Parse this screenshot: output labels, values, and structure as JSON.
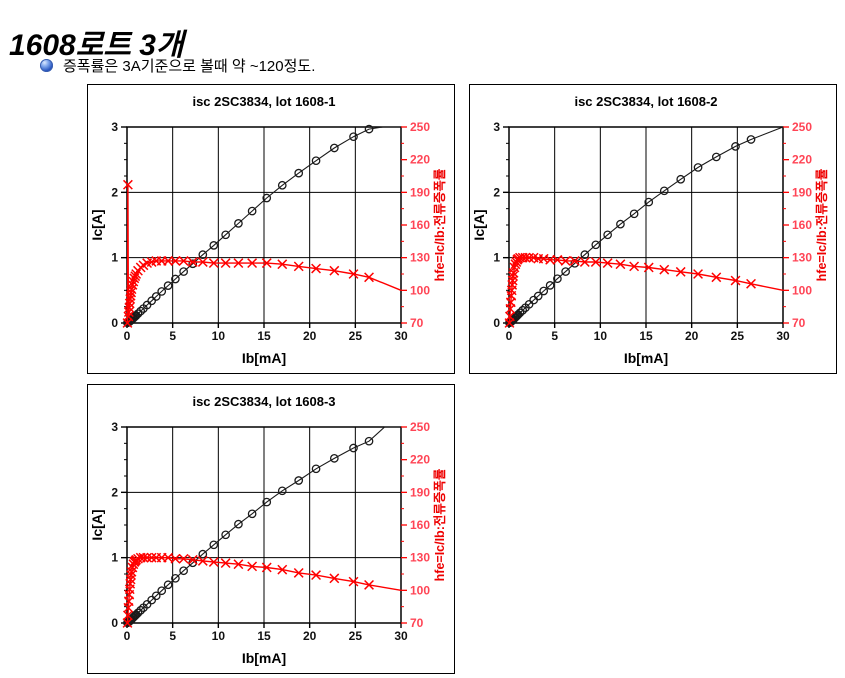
{
  "header": {
    "title": "1608로트 3개"
  },
  "bullet": {
    "icon": "sphere-bullet-icon",
    "text": "증폭률은 3A기준으로 볼때 약 ~120정도."
  },
  "colors": {
    "series_black": "#1a1a1a",
    "series_red": "#ff0000",
    "right_tick_label": "#ff4455",
    "right_axis_label": "#ee0000",
    "grid": "#000000",
    "axis": "#000000"
  },
  "chart_data": [
    {
      "type": "line",
      "title": "isc 2SC3834, lot 1608-1",
      "xlabel": "Ib[mA]",
      "ylabel_left": "Ic[A]",
      "ylabel_right": "hfe=Ic/Ib:전류증폭률",
      "xlim": [
        0,
        30
      ],
      "xticks": [
        0,
        5,
        10,
        15,
        20,
        25,
        30
      ],
      "ylim_left": [
        0,
        3
      ],
      "yticks_left": [
        0,
        1,
        2,
        3
      ],
      "yticks_left_minor_step": 0.25,
      "ylim_right": [
        70,
        250
      ],
      "yticks_right": [
        70,
        100,
        130,
        160,
        190,
        220,
        250
      ],
      "yticks_right_minor_step": 15,
      "grid": true,
      "x": [
        0.05,
        0.1,
        0.15,
        0.2,
        0.25,
        0.3,
        0.35,
        0.4,
        0.45,
        0.5,
        0.6,
        0.7,
        0.8,
        0.9,
        1.0,
        1.2,
        1.5,
        1.8,
        2.2,
        2.7,
        3.2,
        3.8,
        4.5,
        5.3,
        6.2,
        7.2,
        8.3,
        9.5,
        10.8,
        12.2,
        13.7,
        15.3,
        17.0,
        18.8,
        20.7,
        22.7,
        24.8,
        26.5
      ],
      "series": [
        {
          "name": "Ic",
          "axis": "left",
          "marker": "circle",
          "color": "#1a1a1a",
          "y": [
            0.004,
            0.02,
            0.011,
            0.016,
            0.021,
            0.026,
            0.032,
            0.038,
            0.044,
            0.051,
            0.063,
            0.076,
            0.089,
            0.102,
            0.115,
            0.142,
            0.182,
            0.221,
            0.275,
            0.34,
            0.406,
            0.483,
            0.572,
            0.673,
            0.787,
            0.907,
            1.046,
            1.188,
            1.35,
            1.525,
            1.713,
            1.913,
            2.108,
            2.294,
            2.484,
            2.679,
            2.852,
            2.968
          ],
          "tail": [
            [
              28,
              3.0
            ],
            [
              30,
              3.0
            ]
          ]
        },
        {
          "name": "hfe",
          "axis": "right",
          "marker": "x",
          "color": "#ff0000",
          "y": [
            70,
            197,
            76,
            80,
            84,
            88,
            92,
            95,
            98,
            101,
            105,
            108,
            111,
            113,
            115,
            118,
            121,
            123,
            125,
            126,
            127,
            127,
            127,
            127,
            127,
            126,
            126,
            125,
            125,
            125,
            125,
            125,
            124,
            122,
            120,
            118,
            115,
            112
          ],
          "tail": [
            [
              30,
              100
            ]
          ]
        }
      ]
    },
    {
      "type": "line",
      "title": "isc 2SC3834, lot 1608-2",
      "xlabel": "Ib[mA]",
      "ylabel_left": "Ic[A]",
      "ylabel_right": "hfe=Ic/Ib:전류증폭률",
      "xlim": [
        0,
        30
      ],
      "xticks": [
        0,
        5,
        10,
        15,
        20,
        25,
        30
      ],
      "ylim_left": [
        0,
        3
      ],
      "yticks_left": [
        0,
        1,
        2,
        3
      ],
      "yticks_left_minor_step": 0.25,
      "ylim_right": [
        70,
        250
      ],
      "yticks_right": [
        70,
        100,
        130,
        160,
        190,
        220,
        250
      ],
      "yticks_right_minor_step": 15,
      "grid": true,
      "x": [
        0.05,
        0.1,
        0.15,
        0.2,
        0.25,
        0.3,
        0.35,
        0.4,
        0.45,
        0.5,
        0.6,
        0.7,
        0.8,
        0.9,
        1.0,
        1.2,
        1.5,
        1.8,
        2.2,
        2.7,
        3.2,
        3.8,
        4.5,
        5.3,
        6.2,
        7.2,
        8.3,
        9.5,
        10.8,
        12.2,
        13.7,
        15.3,
        17.0,
        18.8,
        20.7,
        22.7,
        24.8,
        26.5
      ],
      "series": [
        {
          "name": "Ic",
          "axis": "left",
          "marker": "circle",
          "color": "#1a1a1a",
          "y": [
            0.004,
            0.008,
            0.012,
            0.018,
            0.024,
            0.03,
            0.037,
            0.044,
            0.051,
            0.058,
            0.073,
            0.087,
            0.101,
            0.115,
            0.129,
            0.156,
            0.195,
            0.234,
            0.286,
            0.351,
            0.413,
            0.49,
            0.576,
            0.678,
            0.787,
            0.914,
            1.046,
            1.197,
            1.35,
            1.513,
            1.671,
            1.851,
            2.023,
            2.2,
            2.381,
            2.542,
            2.703,
            2.809
          ],
          "tail": [
            [
              30,
              3.0
            ]
          ]
        },
        {
          "name": "hfe",
          "axis": "right",
          "marker": "x",
          "color": "#ff0000",
          "y": [
            70,
            76,
            83,
            89,
            95,
            100,
            105,
            109,
            113,
            116,
            121,
            124,
            126,
            128,
            129,
            130,
            130,
            130,
            130,
            130,
            129,
            129,
            128,
            128,
            127,
            127,
            126,
            126,
            125,
            124,
            122,
            121,
            119,
            117,
            115,
            112,
            109,
            106
          ],
          "tail": [
            [
              30,
              100
            ]
          ]
        }
      ]
    },
    {
      "type": "line",
      "title": "isc 2SC3834, lot 1608-3",
      "xlabel": "Ib[mA]",
      "ylabel_left": "Ic[A]",
      "ylabel_right": "hfe=Ic/Ib:전류증폭률",
      "xlim": [
        0,
        30
      ],
      "xticks": [
        0,
        5,
        10,
        15,
        20,
        25,
        30
      ],
      "ylim_left": [
        0,
        3
      ],
      "yticks_left": [
        0,
        1,
        2,
        3
      ],
      "yticks_left_minor_step": 0.25,
      "ylim_right": [
        70,
        250
      ],
      "yticks_right": [
        70,
        100,
        130,
        160,
        190,
        220,
        250
      ],
      "yticks_right_minor_step": 15,
      "grid": true,
      "x": [
        0.05,
        0.1,
        0.15,
        0.2,
        0.25,
        0.3,
        0.35,
        0.4,
        0.45,
        0.5,
        0.6,
        0.7,
        0.8,
        0.9,
        1.0,
        1.2,
        1.5,
        1.8,
        2.2,
        2.7,
        3.2,
        3.8,
        4.5,
        5.3,
        6.2,
        7.2,
        8.3,
        9.5,
        10.8,
        12.2,
        13.7,
        15.3,
        17.0,
        18.8,
        20.7,
        22.7,
        24.8,
        26.5
      ],
      "series": [
        {
          "name": "Ic",
          "axis": "left",
          "marker": "circle",
          "color": "#1a1a1a",
          "y": [
            0.004,
            0.008,
            0.013,
            0.018,
            0.024,
            0.03,
            0.037,
            0.044,
            0.051,
            0.059,
            0.073,
            0.087,
            0.101,
            0.114,
            0.128,
            0.155,
            0.195,
            0.234,
            0.286,
            0.351,
            0.416,
            0.494,
            0.585,
            0.684,
            0.8,
            0.922,
            1.054,
            1.197,
            1.35,
            1.513,
            1.671,
            1.851,
            2.023,
            2.181,
            2.36,
            2.52,
            2.678,
            2.783
          ],
          "tail": [
            [
              28.2,
              3.0
            ],
            [
              30,
              3.0
            ]
          ]
        },
        {
          "name": "hfe",
          "axis": "right",
          "marker": "x",
          "color": "#ff0000",
          "y": [
            70,
            77,
            84,
            90,
            96,
            101,
            106,
            110,
            114,
            117,
            121,
            124,
            126,
            127,
            128,
            129,
            130,
            130,
            130,
            130,
            130,
            130,
            130,
            129,
            129,
            128,
            127,
            126,
            125,
            124,
            122,
            121,
            119,
            116,
            114,
            111,
            108,
            105
          ],
          "tail": [
            [
              30,
              100
            ]
          ]
        }
      ]
    }
  ]
}
